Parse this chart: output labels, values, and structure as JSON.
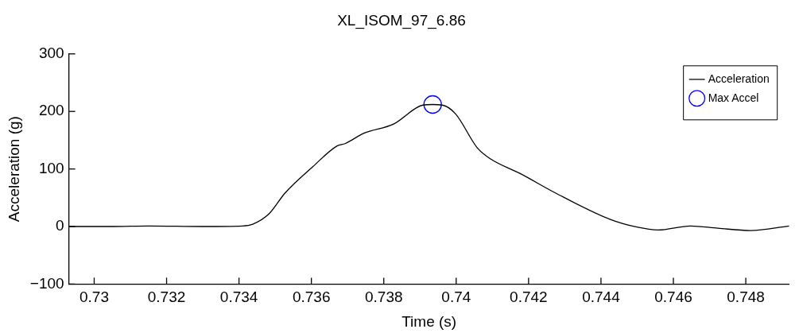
{
  "chart_data": {
    "type": "line",
    "title": "XL_ISOM_97_6.86",
    "xlabel": "Time (s)",
    "ylabel": "Acceleration (g)",
    "xlim": [
      0.7293,
      0.7492
    ],
    "xticks": [
      {
        "value": 0.73,
        "label": "0.73"
      },
      0.732,
      0.734,
      0.736,
      0.738,
      {
        "value": 0.74,
        "label": "0.74"
      },
      0.742,
      0.744,
      0.746,
      0.748
    ],
    "ylim": [
      -100,
      300
    ],
    "yticks": [
      {
        "value": -100,
        "label": "−100"
      },
      0,
      100,
      200,
      300
    ],
    "grid": false,
    "legend": "top right",
    "line_style": "solid",
    "series": [
      {
        "name": "Acceleration",
        "color": "#000000",
        "type": "line",
        "marker": "none",
        "x": [
          0.7293,
          0.7305,
          0.7315,
          0.733,
          0.7341,
          0.73438,
          0.73483,
          0.73527,
          0.73604,
          0.73671,
          0.73693,
          0.73745,
          0.73827,
          0.73908,
          0.73935,
          0.73962,
          0.73998,
          0.74058,
          0.74096,
          0.74177,
          0.74275,
          0.74423,
          0.74499,
          0.74558,
          0.74647,
          0.74723,
          0.74813,
          0.7492
        ],
        "values": [
          0,
          0,
          1,
          0,
          1,
          4,
          22,
          58,
          104,
          140,
          144,
          162,
          178,
          211,
          212,
          211,
          196,
          137,
          117,
          92,
          58,
          13,
          -1,
          -6,
          1,
          -3,
          -7,
          1
        ]
      },
      {
        "name": "Max Accel",
        "color": "#0000ff",
        "type": "scatter",
        "marker": "circle",
        "x": [
          0.73935
        ],
        "values": [
          212
        ]
      }
    ]
  }
}
